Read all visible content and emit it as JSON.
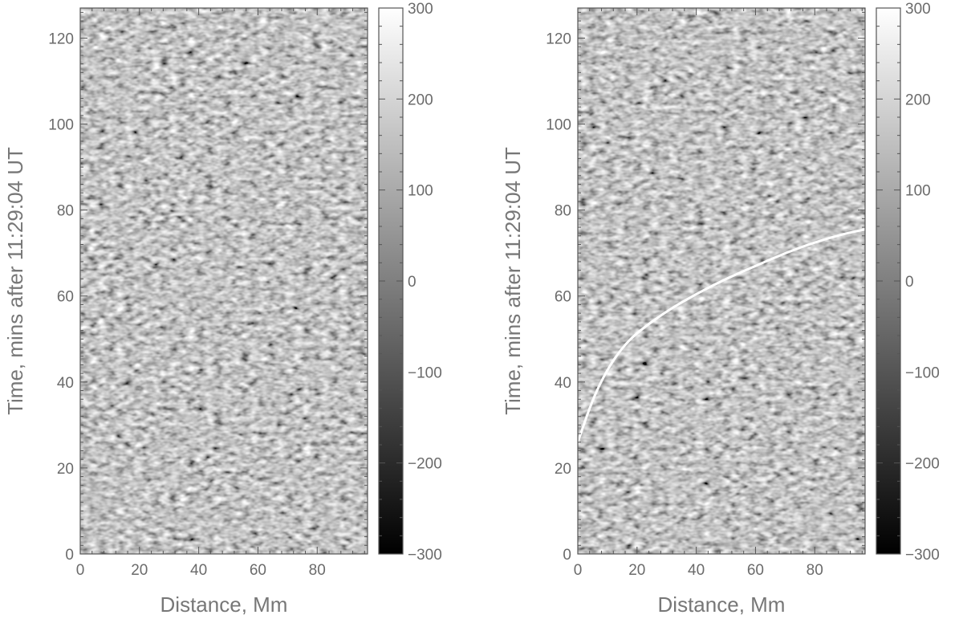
{
  "chart_data": [
    {
      "type": "heatmap",
      "panel": "left",
      "xlabel": "Distance, Mm",
      "ylabel": "Time, mins after 11:29:04 UT",
      "xlim": [
        0,
        97
      ],
      "ylim": [
        0,
        127
      ],
      "x_ticks": [
        0,
        20,
        40,
        60,
        80
      ],
      "y_ticks": [
        0,
        20,
        40,
        60,
        80,
        100,
        120
      ],
      "colorbar": {
        "range": [
          -300,
          300
        ],
        "ticks": [
          300,
          200,
          100,
          0,
          -100,
          -200,
          -300
        ],
        "colormap": "gray"
      },
      "overlay": null
    },
    {
      "type": "heatmap",
      "panel": "right",
      "xlabel": "Distance, Mm",
      "ylabel": "Time, mins after 11:29:04 UT",
      "xlim": [
        0,
        97
      ],
      "ylim": [
        0,
        127
      ],
      "x_ticks": [
        0,
        20,
        40,
        60,
        80
      ],
      "y_ticks": [
        0,
        20,
        40,
        60,
        80,
        100,
        120
      ],
      "colorbar": {
        "range": [
          -300,
          300
        ],
        "ticks": [
          300,
          200,
          100,
          0,
          -100,
          -200,
          -300
        ],
        "colormap": "gray"
      },
      "overlay": {
        "type": "line",
        "color": "#ffffff",
        "x": [
          0,
          5,
          10,
          15,
          20,
          30,
          40,
          50,
          60,
          70,
          80,
          90,
          97
        ],
        "y": [
          26,
          36,
          43,
          48,
          51.5,
          56.5,
          60.5,
          64,
          67,
          70,
          72.5,
          74.5,
          75.5
        ]
      }
    }
  ],
  "colors": {
    "axis": "#555555",
    "text": "#6b6b6b",
    "overlay_line": "#ffffff"
  }
}
